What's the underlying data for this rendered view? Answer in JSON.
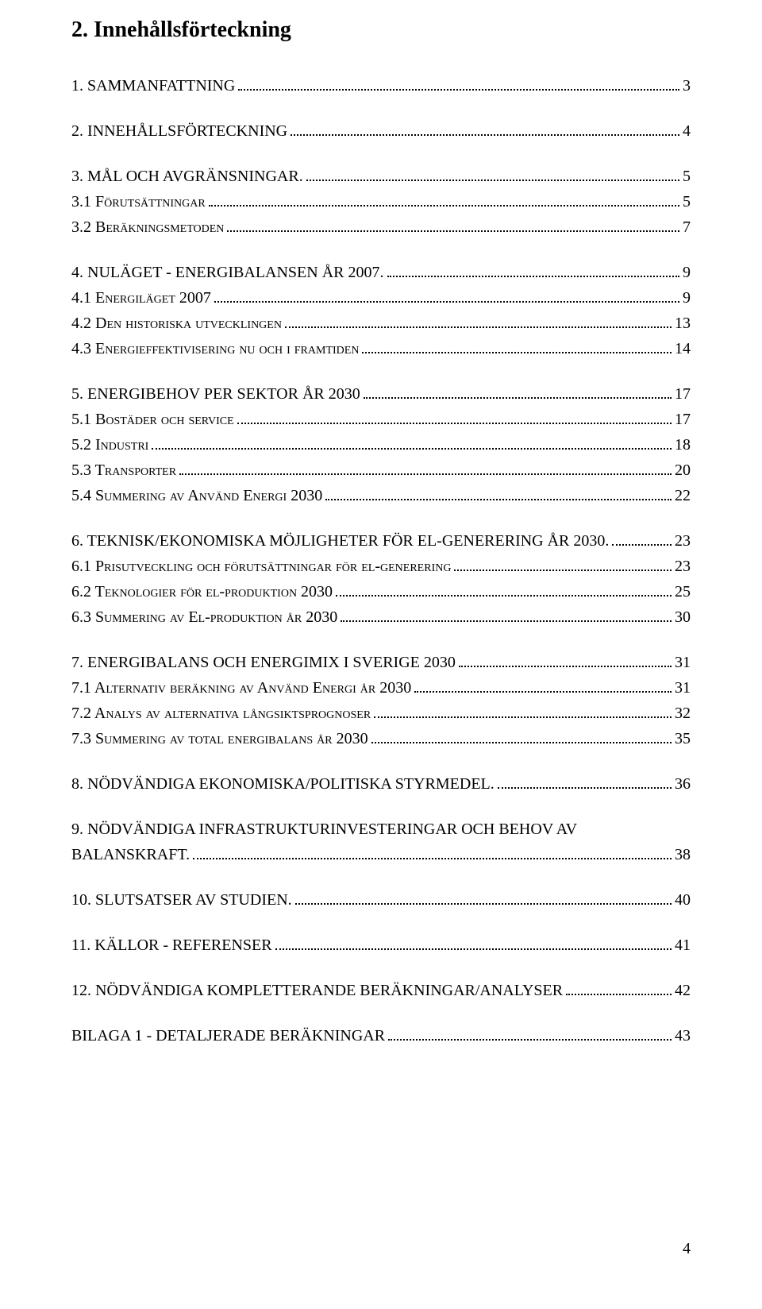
{
  "title": "2. Innehållsförteckning",
  "page_number": "4",
  "font_family": "Times New Roman",
  "colors": {
    "text": "#000000",
    "background": "#ffffff"
  },
  "toc": [
    {
      "level": 1,
      "label": "1. SAMMANFATTNING",
      "page": "3"
    },
    {
      "level": 1,
      "label": "2. INNEHÅLLSFÖRTECKNING",
      "page": "4"
    },
    {
      "level": 1,
      "label": "3. MÅL OCH AVGRÄNSNINGAR.",
      "page": "5"
    },
    {
      "level": 2,
      "label": "3.1 Förutsättningar",
      "page": "5"
    },
    {
      "level": 2,
      "label": "3.2 Beräkningsmetoden",
      "page": "7"
    },
    {
      "level": 1,
      "label": "4. NULÄGET - ENERGIBALANSEN ÅR 2007.",
      "page": "9"
    },
    {
      "level": 2,
      "label": "4.1 Energiläget 2007",
      "page": "9"
    },
    {
      "level": 2,
      "label": "4.2 Den historiska utvecklingen",
      "page": "13"
    },
    {
      "level": 2,
      "label": "4.3 Energieffektivisering nu och i framtiden",
      "page": "14"
    },
    {
      "level": 1,
      "label": "5. ENERGIBEHOV PER SEKTOR ÅR 2030",
      "page": "17"
    },
    {
      "level": 2,
      "label": "5.1 Bostäder och service",
      "page": "17"
    },
    {
      "level": 2,
      "label": "5.2 Industri",
      "page": "18"
    },
    {
      "level": 2,
      "label": "5.3 Transporter",
      "page": "20"
    },
    {
      "level": 2,
      "label": "5.4 Summering av Använd Energi 2030",
      "page": "22"
    },
    {
      "level": 1,
      "label": "6. TEKNISK/EKONOMISKA MÖJLIGHETER FÖR EL-GENERERING ÅR 2030.",
      "page": "23"
    },
    {
      "level": 2,
      "label": "6.1 Prisutveckling och förutsättningar för el-generering",
      "page": "23"
    },
    {
      "level": 2,
      "label": "6.2 Teknologier för el-produktion 2030",
      "page": "25"
    },
    {
      "level": 2,
      "label": "6.3 Summering av El-produktion år 2030",
      "page": "30"
    },
    {
      "level": 1,
      "label": "7. ENERGIBALANS OCH ENERGIMIX I SVERIGE 2030",
      "page": "31"
    },
    {
      "level": 2,
      "label": "7.1 Alternativ beräkning av Använd Energi år 2030",
      "page": "31"
    },
    {
      "level": 2,
      "label": "7.2 Analys av alternativa långsiktsprognoser",
      "page": "32"
    },
    {
      "level": 2,
      "label": "7.3 Summering av total energibalans år 2030",
      "page": "35"
    },
    {
      "level": 1,
      "label": "8. NÖDVÄNDIGA EKONOMISKA/POLITISKA STYRMEDEL.",
      "page": "36"
    },
    {
      "level": 1,
      "label": "9. NÖDVÄNDIGA INFRASTRUKTURINVESTERINGAR OCH BEHOV AV BALANSKRAFT.",
      "page": "38",
      "wrap": true
    },
    {
      "level": 1,
      "label": "10. SLUTSATSER AV STUDIEN.",
      "page": "40"
    },
    {
      "level": 1,
      "label": "11. KÄLLOR - REFERENSER",
      "page": "41"
    },
    {
      "level": 1,
      "label": "12. NÖDVÄNDIGA KOMPLETTERANDE BERÄKNINGAR/ANALYSER",
      "page": "42"
    },
    {
      "level": 1,
      "label": "BILAGA 1 - DETALJERADE BERÄKNINGAR",
      "page": "43"
    }
  ]
}
